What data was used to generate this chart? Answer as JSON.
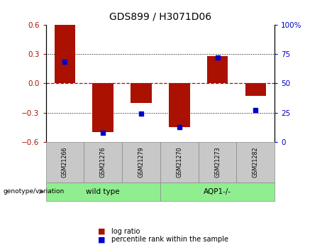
{
  "title": "GDS899 / H3071D06",
  "samples": [
    "GSM21266",
    "GSM21276",
    "GSM21279",
    "GSM21270",
    "GSM21273",
    "GSM21282"
  ],
  "log_ratios": [
    0.6,
    -0.5,
    -0.2,
    -0.45,
    0.28,
    -0.13
  ],
  "percentile_ranks": [
    68,
    8,
    24,
    13,
    72,
    27
  ],
  "ylim_left": [
    -0.6,
    0.6
  ],
  "ylim_right": [
    0,
    100
  ],
  "yticks_left": [
    -0.6,
    -0.3,
    0,
    0.3,
    0.6
  ],
  "yticks_right": [
    0,
    25,
    50,
    75,
    100
  ],
  "bar_color": "#AA1100",
  "scatter_color": "#0000CC",
  "zero_line_color": "#CC0000",
  "group1_label": "wild type",
  "group1_indices": [
    0,
    1,
    2
  ],
  "group2_label": "AQP1-/-",
  "group2_indices": [
    3,
    4,
    5
  ],
  "group_bg_color": "#90EE90",
  "tick_bg_color": "#C8C8C8",
  "legend_log_ratio": "log ratio",
  "legend_percentile": "percentile rank within the sample",
  "genotype_label": "genotype/variation",
  "bar_width": 0.55
}
